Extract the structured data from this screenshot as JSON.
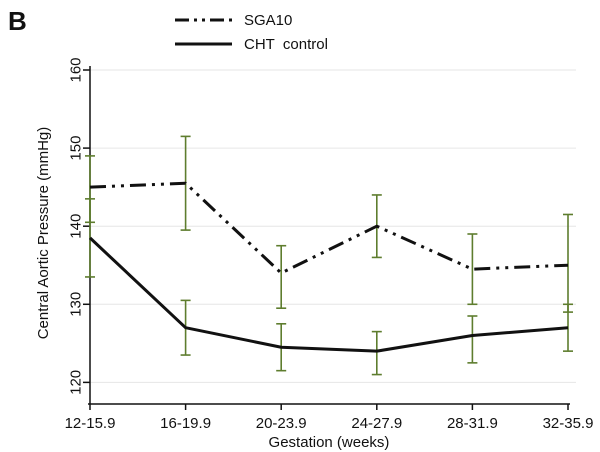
{
  "panel_label": "B",
  "chart_data": {
    "type": "line",
    "title": "",
    "xlabel": "Gestation (weeks)",
    "ylabel": "Central Aortic Pressure (mmHg)",
    "categories": [
      "12-15.9",
      "16-19.9",
      "20-23.9",
      "24-27.9",
      "28-31.9",
      "32-35.9"
    ],
    "ylim": [
      118,
      160
    ],
    "yticks": [
      120,
      130,
      140,
      150,
      160
    ],
    "grid": true,
    "legend": "top",
    "series": [
      {
        "name": "SGA10",
        "style": "dash-dot",
        "color": "#111111",
        "values": [
          145,
          145.5,
          134,
          140,
          134.5,
          135
        ],
        "err_low": [
          140.5,
          139.5,
          129.5,
          136,
          130,
          129
        ],
        "err_high": [
          149,
          151.5,
          137.5,
          144,
          139,
          141.5
        ]
      },
      {
        "name": "CHT  control",
        "style": "solid",
        "color": "#111111",
        "values": [
          138.5,
          127,
          124.5,
          124,
          126,
          127
        ],
        "err_low": [
          133.5,
          123.5,
          121.5,
          121,
          122.5,
          124
        ],
        "err_high": [
          143.5,
          130.5,
          127.5,
          126.5,
          128.5,
          130
        ]
      }
    ],
    "errorbar_color": "#5e7d2e"
  }
}
